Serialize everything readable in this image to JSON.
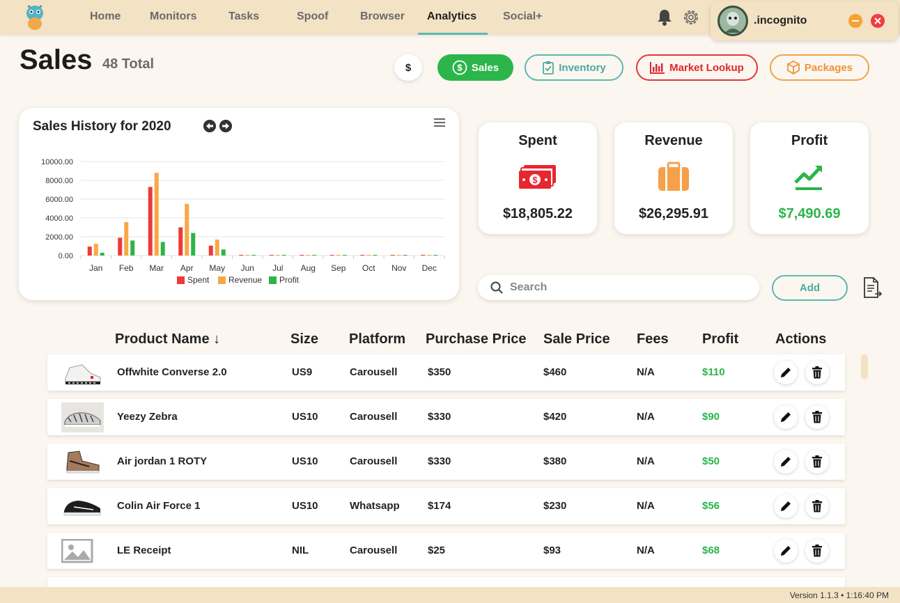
{
  "nav": {
    "items": [
      "Home",
      "Monitors",
      "Tasks",
      "Spoof",
      "Browser",
      "Analytics",
      "Social+"
    ],
    "active": "Analytics"
  },
  "profile": {
    "name": ".incognito"
  },
  "page": {
    "title": "Sales",
    "count_label": "48 Total"
  },
  "pills": {
    "dollar": "$",
    "sales": "Sales",
    "inventory": "Inventory",
    "market_lookup": "Market Lookup",
    "packages": "Packages"
  },
  "chart_data": {
    "type": "bar",
    "title": "Sales History for 2020",
    "categories": [
      "Jan",
      "Feb",
      "Mar",
      "Apr",
      "May",
      "Jun",
      "Jul",
      "Aug",
      "Sep",
      "Oct",
      "Nov",
      "Dec"
    ],
    "series": [
      {
        "name": "Spent",
        "color": "#ee3a3a",
        "values": [
          950,
          1900,
          7300,
          3000,
          1050,
          0,
          0,
          0,
          0,
          0,
          0,
          0
        ]
      },
      {
        "name": "Revenue",
        "color": "#f7a845",
        "values": [
          1250,
          3550,
          8800,
          5500,
          1700,
          0,
          0,
          0,
          0,
          0,
          0,
          0
        ]
      },
      {
        "name": "Profit",
        "color": "#2fb44a",
        "values": [
          300,
          1600,
          1450,
          2400,
          650,
          0,
          0,
          0,
          0,
          0,
          0,
          0
        ]
      }
    ],
    "yticks": [
      "10000.00",
      "8000.00",
      "6000.00",
      "4000.00",
      "2000.00",
      "0.00"
    ],
    "ylim": [
      0,
      10000
    ],
    "legend": "bottom",
    "grid": true
  },
  "stats": {
    "spent": {
      "title": "Spent",
      "value": "$18,805.22"
    },
    "revenue": {
      "title": "Revenue",
      "value": "$26,295.91"
    },
    "profit": {
      "title": "Profit",
      "value": "$7,490.69"
    }
  },
  "search": {
    "placeholder": "Search"
  },
  "add_label": "Add",
  "table": {
    "headers": {
      "product": "Product Name ↓",
      "size": "Size",
      "platform": "Platform",
      "purchase": "Purchase Price",
      "sale": "Sale Price",
      "fees": "Fees",
      "profit": "Profit",
      "actions": "Actions"
    },
    "rows": [
      {
        "name": "Offwhite Converse 2.0",
        "size": "US9",
        "platform": "Carousell",
        "purchase": "$350",
        "sale": "$460",
        "fees": "N/A",
        "profit": "$110"
      },
      {
        "name": "Yeezy Zebra",
        "size": "US10",
        "platform": "Carousell",
        "purchase": "$330",
        "sale": "$420",
        "fees": "N/A",
        "profit": "$90"
      },
      {
        "name": "Air jordan 1 ROTY",
        "size": "US10",
        "platform": "Carousell",
        "purchase": "$330",
        "sale": "$380",
        "fees": "N/A",
        "profit": "$50"
      },
      {
        "name": "Colin Air Force 1",
        "size": "US10",
        "platform": "Whatsapp",
        "purchase": "$174",
        "sale": "$230",
        "fees": "N/A",
        "profit": "$56"
      },
      {
        "name": "LE Receipt",
        "size": "NIL",
        "platform": "Carousell",
        "purchase": "$25",
        "sale": "$93",
        "fees": "N/A",
        "profit": "$68"
      }
    ]
  },
  "footer": {
    "version": "Version 1.1.3 • 1:16:40 PM"
  }
}
